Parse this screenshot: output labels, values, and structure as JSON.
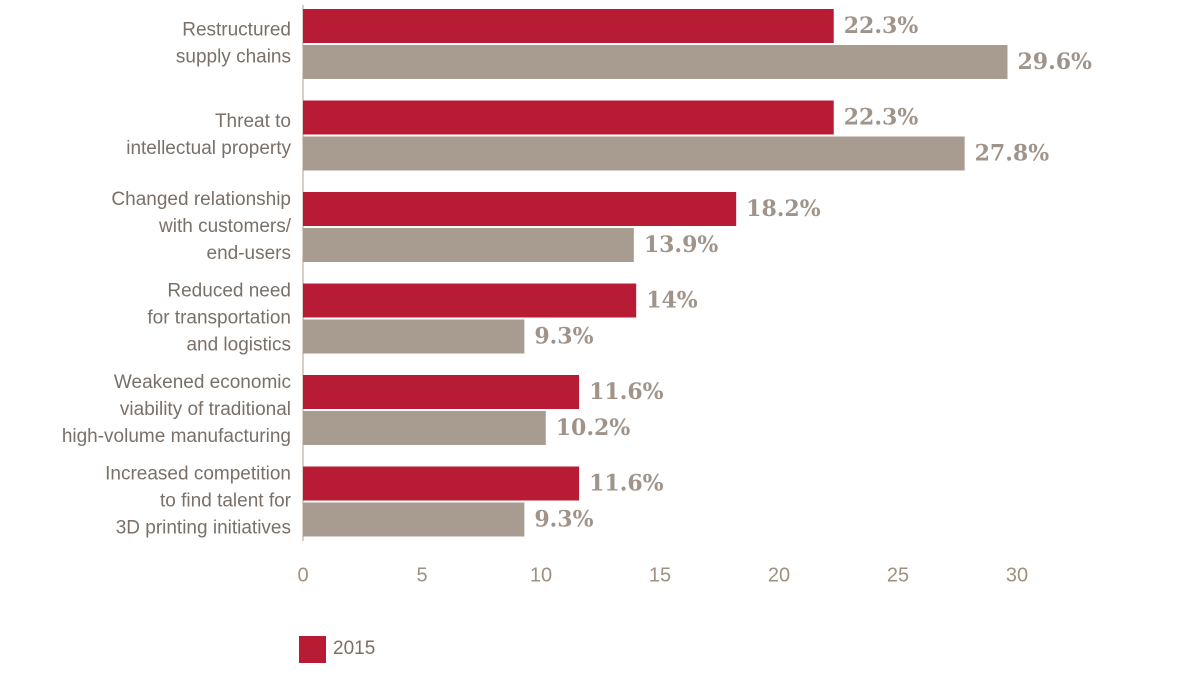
{
  "chart_data": {
    "type": "bar",
    "orientation": "horizontal",
    "categories": [
      "Restructured\nsupply chains",
      "Threat to\nintellectual property",
      "Changed relationship\nwith customers/\nend-users",
      "Reduced need\nfor transportation\nand logistics",
      "Weakened economic\nviability of traditional\nhigh-volume manufacturing",
      "Increased competition\nto find talent for\n3D printing initiatives"
    ],
    "series": [
      {
        "name": "2015",
        "color": "#b81c35",
        "values": [
          22.3,
          22.3,
          18.2,
          14,
          11.6,
          11.6
        ],
        "value_labels": [
          "22.3%",
          "22.3%",
          "18.2%",
          "14%",
          "11.6%",
          "11.6%"
        ]
      },
      {
        "color": "#a89b90",
        "values": [
          29.6,
          27.8,
          13.9,
          9.3,
          10.2,
          9.3
        ],
        "value_labels": [
          "29.6%",
          "27.8%",
          "13.9%",
          "9.3%",
          "10.2%",
          "9.3%"
        ]
      }
    ],
    "xlim": [
      0,
      30
    ],
    "xticks": [
      0,
      5,
      10,
      15,
      20,
      25,
      30
    ],
    "legend": "bottom-left"
  }
}
